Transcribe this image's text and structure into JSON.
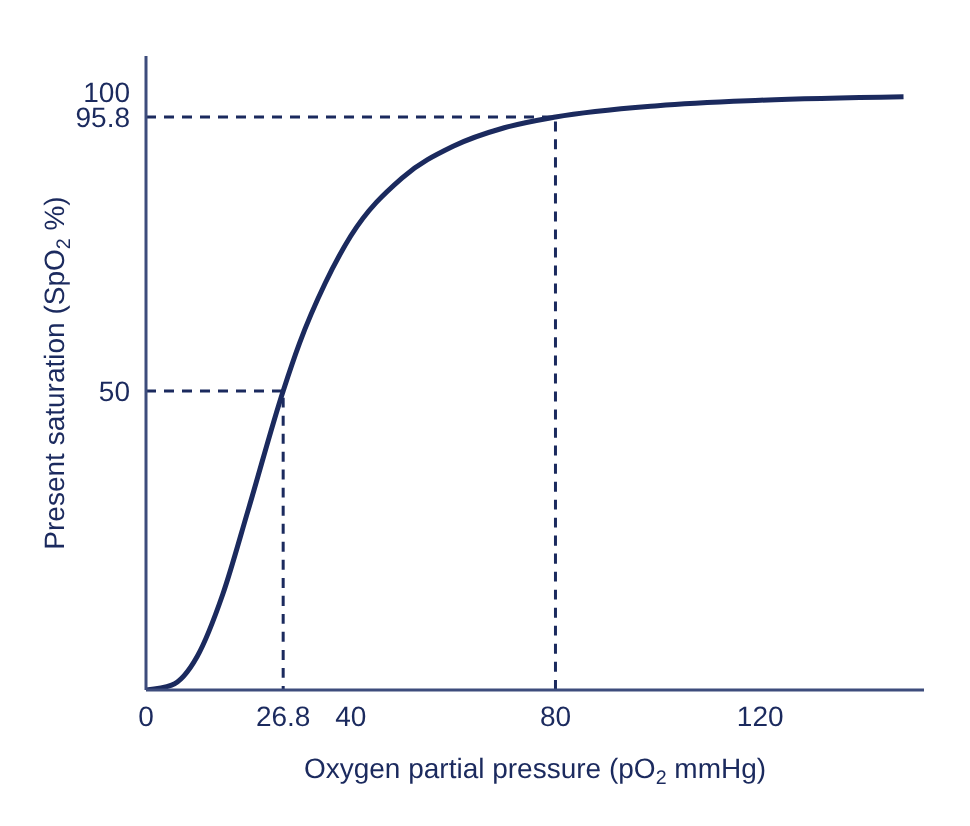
{
  "chart_data": {
    "type": "line",
    "xlabel": "Oxygen partial pressure (pO$_{2}$ mmHg)",
    "ylabel": "Present saturation (SpO$_{2}$ %)",
    "xlim": [
      0,
      152
    ],
    "ylim": [
      0,
      106
    ],
    "xticks": [
      0,
      26.8,
      40,
      80,
      120
    ],
    "yticks": [
      50,
      95.8,
      100
    ],
    "grid": false,
    "legend": false,
    "marker": "none",
    "series": [
      {
        "color": "#1b2a5e",
        "line_style": "solid",
        "x": [
          0,
          5,
          10,
          15,
          20,
          26.8,
          30,
          35,
          40,
          50,
          60,
          70,
          80,
          100,
          120,
          148
        ],
        "values": [
          0,
          0.8,
          5.6,
          16,
          30.2,
          50,
          58,
          68,
          75.9,
          85.6,
          90.9,
          94,
          95.8,
          97.7,
          98.6,
          99.2
        ]
      },
      {
        "color": "#1b2a5e",
        "line_style": "dashed",
        "x": [
          0,
          26.8,
          26.8
        ],
        "values": [
          50,
          50,
          0
        ]
      },
      {
        "color": "#1b2a5e",
        "line_style": "dashed",
        "x": [
          0,
          80,
          80
        ],
        "values": [
          95.8,
          95.8,
          0
        ]
      }
    ]
  }
}
